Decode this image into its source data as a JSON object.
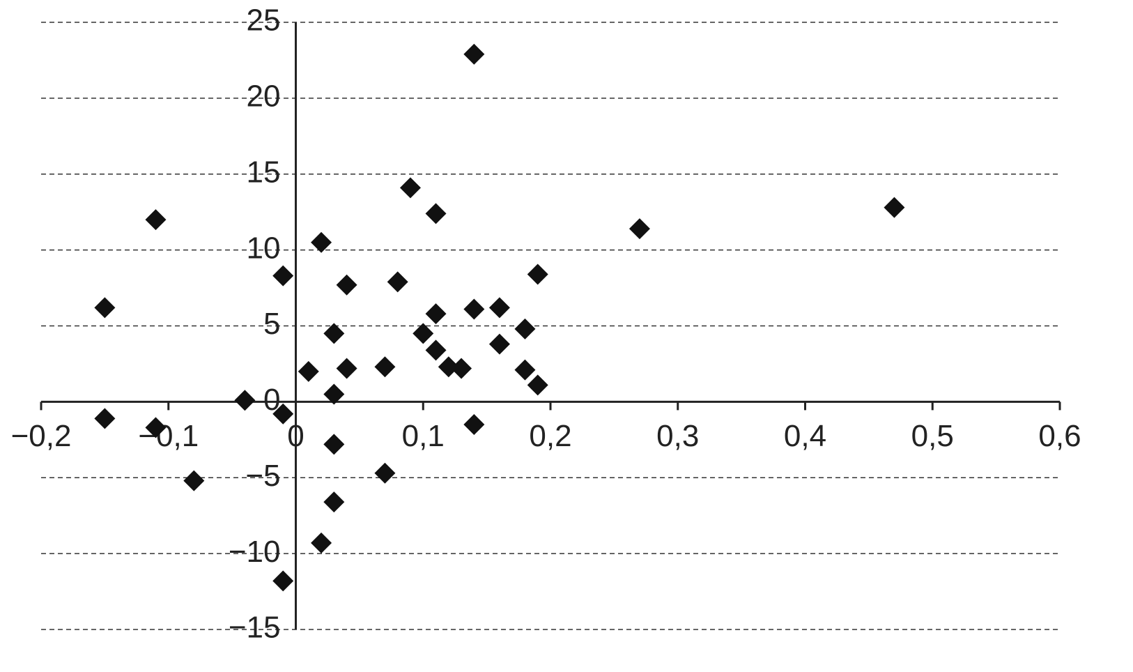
{
  "chart_data": {
    "type": "scatter",
    "x": [
      0.14,
      0.09,
      0.11,
      -0.11,
      0.47,
      0.27,
      0.02,
      -0.01,
      0.19,
      0.08,
      0.04,
      -0.15,
      0.14,
      0.16,
      0.11,
      0.18,
      0.03,
      0.1,
      0.16,
      0.11,
      0.01,
      0.04,
      0.07,
      0.12,
      0.13,
      0.18,
      0.19,
      0.03,
      -0.04,
      -0.01,
      -0.15,
      -0.11,
      0.14,
      0.03,
      0.07,
      -0.08,
      0.03,
      0.02,
      -0.01
    ],
    "values": [
      22.9,
      14.1,
      12.4,
      12.0,
      12.8,
      11.4,
      10.5,
      8.3,
      8.4,
      7.9,
      7.7,
      6.2,
      6.1,
      6.2,
      5.8,
      4.8,
      4.5,
      4.5,
      3.8,
      3.4,
      2.0,
      2.2,
      2.3,
      2.3,
      2.2,
      2.1,
      1.1,
      0.5,
      0.1,
      -0.8,
      -1.1,
      -1.7,
      -1.5,
      -2.8,
      -4.7,
      -5.2,
      -6.6,
      -9.3,
      -11.8
    ],
    "color": "#111111",
    "xlim": [
      -0.2,
      0.6
    ],
    "xticks": [
      {
        "value": -0.2,
        "label": "−0,2"
      },
      {
        "value": -0.1,
        "label": "−0,1"
      },
      0,
      {
        "value": 0.1,
        "label": "0,1"
      },
      {
        "value": 0.2,
        "label": "0,2"
      },
      {
        "value": 0.3,
        "label": "0,3"
      },
      {
        "value": 0.4,
        "label": "0,4"
      },
      {
        "value": 0.5,
        "label": "0,5"
      },
      {
        "value": 0.6,
        "label": "0,6"
      }
    ],
    "ylim": [
      -15,
      25
    ],
    "yticks": [
      {
        "value": -15,
        "label": "−15"
      },
      {
        "value": -10,
        "label": "−10"
      },
      {
        "value": -5,
        "label": "−5"
      },
      0,
      5,
      10,
      15,
      20,
      25
    ],
    "grid": true
  }
}
